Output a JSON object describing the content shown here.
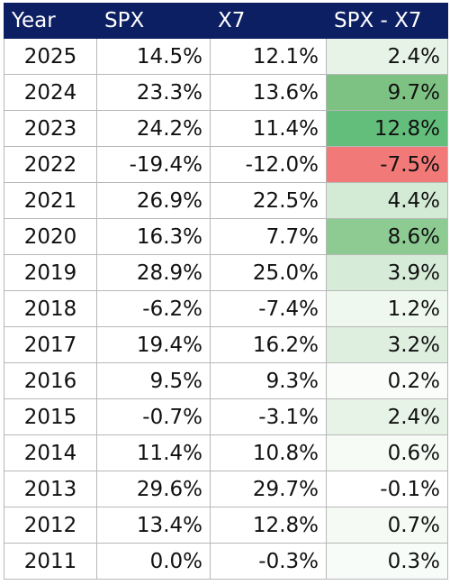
{
  "headers": {
    "year": "Year",
    "spx": "SPX",
    "x7": "X7",
    "diff": "SPX - X7"
  },
  "rows": [
    {
      "year": "2025",
      "spx": "14.5%",
      "x7": "12.1%",
      "diff": "2.4%",
      "color": "#e6f3e6"
    },
    {
      "year": "2024",
      "spx": "23.3%",
      "x7": "13.6%",
      "diff": "9.7%",
      "color": "#7ec283"
    },
    {
      "year": "2023",
      "spx": "24.2%",
      "x7": "11.4%",
      "diff": "12.8%",
      "color": "#63be7b"
    },
    {
      "year": "2022",
      "spx": "-19.4%",
      "x7": "-12.0%",
      "diff": "-7.5%",
      "color": "#f17a78"
    },
    {
      "year": "2021",
      "spx": "26.9%",
      "x7": "22.5%",
      "diff": "4.4%",
      "color": "#d3ead5"
    },
    {
      "year": "2020",
      "spx": "16.3%",
      "x7": "7.7%",
      "diff": "8.6%",
      "color": "#8dcb93"
    },
    {
      "year": "2019",
      "spx": "28.9%",
      "x7": "25.0%",
      "diff": "3.9%",
      "color": "#d6ecd8"
    },
    {
      "year": "2018",
      "spx": "-6.2%",
      "x7": "-7.4%",
      "diff": "1.2%",
      "color": "#eff8ef"
    },
    {
      "year": "2017",
      "spx": "19.4%",
      "x7": "16.2%",
      "diff": "3.2%",
      "color": "#deefe0"
    },
    {
      "year": "2016",
      "spx": "9.5%",
      "x7": "9.3%",
      "diff": "0.2%",
      "color": "#f9fcf9"
    },
    {
      "year": "2015",
      "spx": "-0.7%",
      "x7": "-3.1%",
      "diff": "2.4%",
      "color": "#e6f3e6"
    },
    {
      "year": "2014",
      "spx": "11.4%",
      "x7": "10.8%",
      "diff": "0.6%",
      "color": "#f6fbf6"
    },
    {
      "year": "2013",
      "spx": "29.6%",
      "x7": "29.7%",
      "diff": "-0.1%",
      "color": "#ffffff"
    },
    {
      "year": "2012",
      "spx": "13.4%",
      "x7": "12.8%",
      "diff": "0.7%",
      "color": "#f5faf5"
    },
    {
      "year": "2011",
      "spx": "0.0%",
      "x7": "-0.3%",
      "diff": "0.3%",
      "color": "#f8fcf8"
    }
  ]
}
